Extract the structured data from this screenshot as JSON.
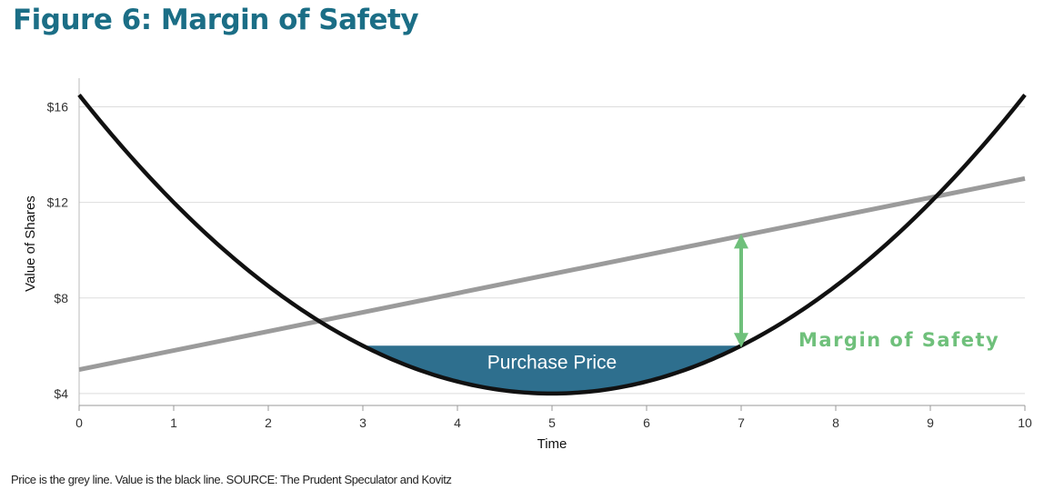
{
  "figure": {
    "title": "Figure 6: Margin of Safety",
    "caption": "Price is the grey line. Value is the black line. SOURCE: The Prudent Speculator and Kovitz"
  },
  "chart_data": {
    "type": "line",
    "xlabel": "Time",
    "ylabel": "Value of Shares",
    "xlim": [
      0,
      10
    ],
    "ylim": [
      3.5,
      17.2
    ],
    "x_ticks": [
      0,
      1,
      2,
      3,
      4,
      5,
      6,
      7,
      8,
      9,
      10
    ],
    "y_ticks": [
      4,
      8,
      12,
      16
    ],
    "y_tick_labels": [
      "$4",
      "$8",
      "$12",
      "$16"
    ],
    "grid": "horizontal",
    "series": [
      {
        "name": "Price",
        "color": "#9b9b9b",
        "x": [
          0,
          10
        ],
        "y": [
          5.0,
          13.0
        ]
      },
      {
        "name": "Value",
        "color": "#111111",
        "x": [
          0,
          1,
          2,
          3,
          4,
          5,
          6,
          7,
          8,
          9,
          10
        ],
        "y": [
          16.5,
          12.0,
          8.5,
          6.0,
          4.5,
          4.0,
          4.5,
          6.0,
          8.5,
          12.0,
          16.5
        ]
      }
    ],
    "annotations": {
      "purchase_price": {
        "label": "Purchase Price",
        "y": 6.0,
        "x_range": [
          3,
          7
        ],
        "color": "#2e6f8e"
      },
      "margin_of_safety": {
        "label": "Margin of Safety",
        "x": 7,
        "from": 6.0,
        "to": 10.6,
        "color": "#6fc07b"
      }
    }
  }
}
